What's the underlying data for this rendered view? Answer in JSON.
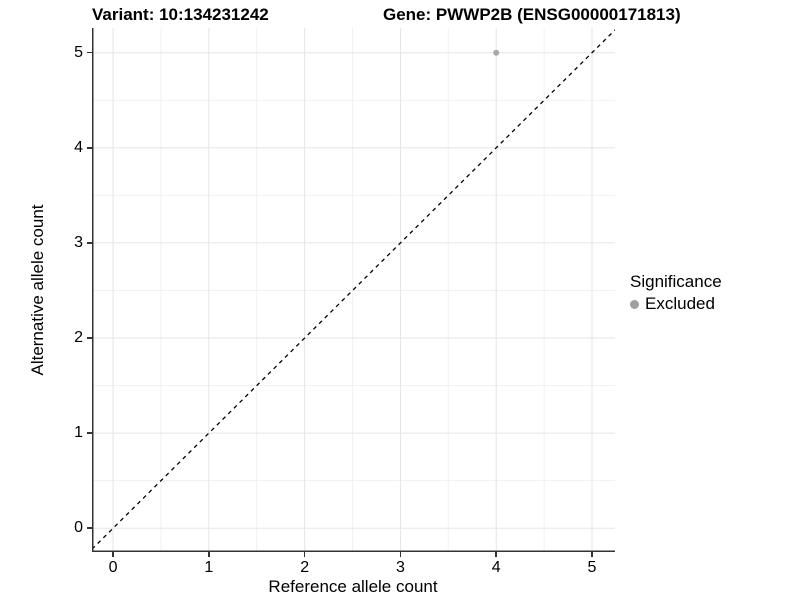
{
  "chart_data": {
    "type": "scatter",
    "titles": {
      "left": "Variant: 10:134231242",
      "right": "Gene: PWWP2B (ENSG00000171813)"
    },
    "xlabel": "Reference allele count",
    "ylabel": "Alternative allele count",
    "xticks": [
      0,
      1,
      2,
      3,
      4,
      5
    ],
    "yticks": [
      0,
      1,
      2,
      3,
      4,
      5
    ],
    "xlim": [
      -0.22,
      5.24
    ],
    "ylim": [
      -0.25,
      5.26
    ],
    "grid": {
      "major": true,
      "minor": true,
      "major_color": "#e5e5e5",
      "minor_color": "#f1f1f1"
    },
    "axis_line_color": "#333333",
    "background": "#ffffff",
    "identity_line": {
      "show": true,
      "equation": "y = x",
      "style": "dashed",
      "color": "#000000"
    },
    "series": [
      {
        "name": "Excluded",
        "color": "#a9a9a9",
        "point_radius": 3,
        "points": [
          [
            4,
            5
          ]
        ]
      }
    ],
    "legend": {
      "title": "Significance",
      "position": "right",
      "entries": [
        {
          "label": "Excluded",
          "color": "#a0a0a0",
          "marker": "circle"
        }
      ]
    }
  }
}
